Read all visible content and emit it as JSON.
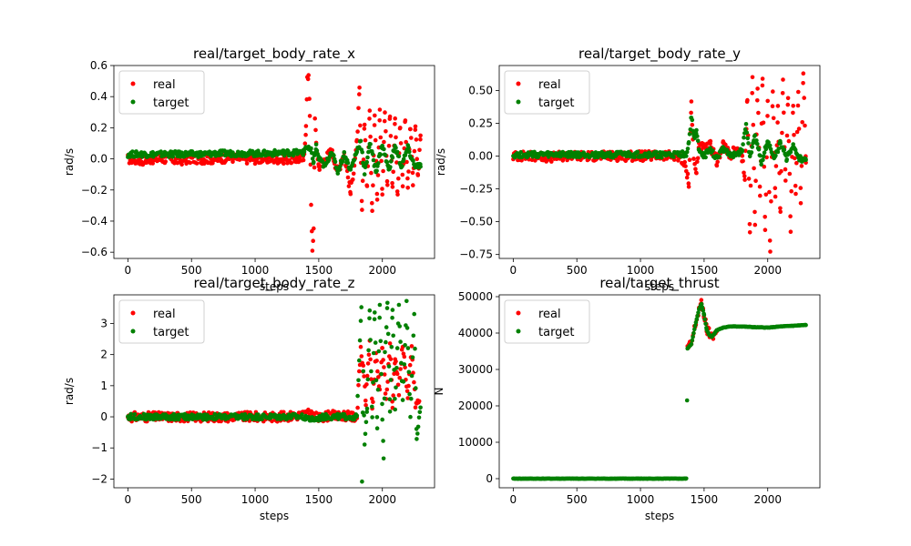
{
  "colors": {
    "real": "#ff0000",
    "target": "#008000"
  },
  "chart_data": [
    {
      "type": "scatter",
      "title": "real/target_body_rate_x",
      "xlabel": "steps",
      "ylabel": "rad/s",
      "xlim": [
        -110,
        2410
      ],
      "ylim": [
        -0.64,
        0.6
      ],
      "xticks": [
        0,
        500,
        1000,
        1500,
        2000
      ],
      "yticks": [
        -0.6,
        -0.4,
        -0.2,
        0.0,
        0.2,
        0.4,
        0.6
      ],
      "ytick_labels": [
        "−0.6",
        "−0.4",
        "−0.2",
        "0.0",
        "0.2",
        "0.4",
        "0.6"
      ],
      "legend": {
        "placement": "upper-left",
        "entries": [
          "real",
          "target"
        ]
      },
      "grid": false,
      "series": [
        {
          "name": "real",
          "color": "#ff0000",
          "x": [
            0,
            100,
            200,
            300,
            400,
            500,
            600,
            700,
            800,
            900,
            1000,
            1100,
            1200,
            1300,
            1380,
            1400,
            1410,
            1420,
            1430,
            1440,
            1450,
            1460,
            1470,
            1480,
            1500,
            1550,
            1600,
            1650,
            1700,
            1750,
            1800,
            1820,
            1840,
            1860,
            1880,
            1900,
            1920,
            1940,
            1960,
            1980,
            2000,
            2020,
            2040,
            2060,
            2080,
            2100,
            2120,
            2140,
            2160,
            2180,
            2200,
            2220,
            2240,
            2260,
            2280,
            2300
          ],
          "y": [
            0.0,
            -0.01,
            0.0,
            0.0,
            -0.01,
            0.0,
            0.0,
            0.0,
            0.01,
            0.0,
            0.0,
            0.0,
            0.0,
            0.0,
            0.0,
            0.2,
            0.5,
            0.55,
            0.3,
            -0.3,
            -0.6,
            -0.45,
            0.25,
            0.1,
            -0.05,
            0.0,
            0.05,
            -0.08,
            0.04,
            -0.22,
            0.1,
            0.43,
            -0.35,
            0.25,
            -0.2,
            0.3,
            -0.32,
            0.28,
            -0.25,
            0.33,
            -0.22,
            0.3,
            -0.18,
            0.29,
            -0.2,
            0.28,
            -0.24,
            0.23,
            -0.17,
            0.25,
            -0.2,
            0.22,
            -0.15,
            0.2,
            -0.12,
            0.15
          ]
        },
        {
          "name": "target",
          "color": "#008000",
          "x": [
            0,
            100,
            200,
            300,
            400,
            500,
            600,
            700,
            800,
            900,
            1000,
            1100,
            1200,
            1300,
            1380,
            1400,
            1420,
            1440,
            1460,
            1480,
            1500,
            1550,
            1600,
            1650,
            1700,
            1750,
            1800,
            1830,
            1860,
            1900,
            1950,
            2000,
            2050,
            2100,
            2150,
            2200,
            2250,
            2300
          ],
          "y": [
            0.03,
            0.03,
            0.03,
            0.03,
            0.03,
            0.03,
            0.03,
            0.035,
            0.035,
            0.035,
            0.035,
            0.035,
            0.04,
            0.04,
            0.04,
            0.08,
            0.06,
            0.05,
            -0.02,
            0.08,
            0.0,
            -0.05,
            0.05,
            -0.08,
            0.03,
            -0.07,
            0.05,
            0.12,
            -0.1,
            0.1,
            -0.08,
            0.09,
            -0.07,
            0.08,
            -0.05,
            0.07,
            -0.04,
            -0.05
          ]
        }
      ]
    },
    {
      "type": "scatter",
      "title": "real/target_body_rate_y",
      "xlabel": "steps",
      "ylabel": "rad/s",
      "xlim": [
        -110,
        2410
      ],
      "ylim": [
        -0.78,
        0.69
      ],
      "xticks": [
        0,
        500,
        1000,
        1500,
        2000
      ],
      "yticks": [
        -0.75,
        -0.5,
        -0.25,
        0.0,
        0.25,
        0.5
      ],
      "ytick_labels": [
        "−0.75",
        "−0.50",
        "−0.25",
        "0.00",
        "0.25",
        "0.50"
      ],
      "legend": {
        "placement": "upper-left",
        "entries": [
          "real",
          "target"
        ]
      },
      "grid": false,
      "series": [
        {
          "name": "real",
          "color": "#ff0000",
          "x": [
            0,
            100,
            200,
            300,
            400,
            500,
            600,
            700,
            800,
            900,
            1000,
            1100,
            1200,
            1300,
            1360,
            1380,
            1400,
            1420,
            1440,
            1460,
            1500,
            1550,
            1600,
            1650,
            1700,
            1750,
            1800,
            1820,
            1840,
            1860,
            1880,
            1900,
            1920,
            1940,
            1960,
            1980,
            2000,
            2020,
            2040,
            2060,
            2080,
            2100,
            2120,
            2140,
            2160,
            2180,
            2200,
            2220,
            2240,
            2260,
            2280,
            2300
          ],
          "y": [
            0.0,
            0.0,
            0.0,
            -0.01,
            0.0,
            0.0,
            0.0,
            0.0,
            0.0,
            0.0,
            0.0,
            0.0,
            0.0,
            0.0,
            -0.1,
            -0.2,
            0.4,
            -0.05,
            -0.13,
            0.1,
            0.05,
            0.08,
            -0.05,
            0.1,
            0.0,
            0.05,
            -0.03,
            -0.15,
            0.45,
            -0.6,
            0.58,
            -0.5,
            0.55,
            -0.3,
            0.6,
            -0.55,
            0.4,
            -0.72,
            0.5,
            -0.3,
            0.35,
            -0.45,
            0.55,
            -0.2,
            0.45,
            -0.55,
            0.4,
            -0.3,
            0.48,
            -0.35,
            0.64,
            -0.05
          ]
        },
        {
          "name": "target",
          "color": "#008000",
          "x": [
            0,
            100,
            200,
            300,
            400,
            500,
            600,
            700,
            800,
            900,
            1000,
            1100,
            1200,
            1300,
            1360,
            1380,
            1400,
            1420,
            1440,
            1460,
            1500,
            1550,
            1600,
            1650,
            1700,
            1750,
            1800,
            1830,
            1860,
            1900,
            1950,
            2000,
            2050,
            2100,
            2150,
            2200,
            2250,
            2300
          ],
          "y": [
            0.01,
            0.01,
            0.01,
            0.01,
            0.01,
            0.01,
            0.01,
            0.01,
            0.01,
            0.01,
            0.01,
            0.01,
            0.01,
            0.01,
            0.02,
            0.1,
            0.3,
            0.15,
            0.18,
            0.05,
            0.0,
            0.05,
            -0.02,
            0.06,
            0.02,
            0.0,
            0.05,
            0.25,
            0.0,
            0.15,
            -0.05,
            0.12,
            -0.03,
            0.1,
            -0.02,
            0.08,
            -0.02,
            -0.03
          ]
        }
      ]
    },
    {
      "type": "scatter",
      "title": "real/target_body_rate_z",
      "xlabel": "steps",
      "ylabel": "rad/s",
      "xlim": [
        -110,
        2410
      ],
      "ylim": [
        -2.28,
        3.92
      ],
      "xticks": [
        0,
        500,
        1000,
        1500,
        2000
      ],
      "yticks": [
        -2,
        -1,
        0,
        1,
        2,
        3
      ],
      "ytick_labels": [
        "−2",
        "−1",
        "0",
        "1",
        "2",
        "3"
      ],
      "legend": {
        "placement": "upper-left",
        "entries": [
          "real",
          "target"
        ]
      },
      "grid": false,
      "series": [
        {
          "name": "real",
          "color": "#ff0000",
          "x": [
            0,
            200,
            400,
            600,
            800,
            1000,
            1200,
            1350,
            1400,
            1450,
            1500,
            1550,
            1600,
            1650,
            1700,
            1750,
            1800,
            1830,
            1850,
            1870,
            1900,
            1920,
            1950,
            1980,
            2000,
            2030,
            2060,
            2080,
            2100,
            2130,
            2160,
            2200,
            2230,
            2260,
            2290
          ],
          "y": [
            0.0,
            0.0,
            0.0,
            0.0,
            0.0,
            0.0,
            0.0,
            0.05,
            0.1,
            0.05,
            -0.05,
            0.02,
            0.05,
            0.0,
            0.05,
            0.0,
            0.0,
            2.2,
            1.5,
            0.5,
            2.5,
            0.2,
            2.0,
            0.8,
            2.3,
            0.5,
            2.4,
            0.3,
            2.0,
            0.8,
            2.4,
            0.6,
            2.2,
            0.4,
            0.5
          ]
        },
        {
          "name": "target",
          "color": "#008000",
          "x": [
            0,
            200,
            400,
            600,
            800,
            1000,
            1200,
            1350,
            1400,
            1450,
            1500,
            1550,
            1600,
            1650,
            1700,
            1750,
            1800,
            1835,
            1840,
            1850,
            1860,
            1880,
            1900,
            1920,
            1940,
            1960,
            1980,
            2000,
            2010,
            2020,
            2040,
            2060,
            2080,
            2100,
            2130,
            2160,
            2190,
            2220,
            2250,
            2270,
            2300
          ],
          "y": [
            0.0,
            0.0,
            0.0,
            0.0,
            0.0,
            0.0,
            0.0,
            0.0,
            0.0,
            -0.1,
            -0.05,
            0.0,
            0.0,
            0.0,
            0.0,
            0.0,
            0.0,
            3.5,
            -2.0,
            1.5,
            -0.8,
            0.3,
            3.5,
            0.0,
            3.4,
            -0.3,
            3.6,
            0.0,
            -1.4,
            2.0,
            3.6,
            0.2,
            3.5,
            0.3,
            3.6,
            0.5,
            3.65,
            0.0,
            3.3,
            -0.7,
            0.3
          ]
        }
      ]
    },
    {
      "type": "scatter",
      "title": "real/target_thrust",
      "xlabel": "steps",
      "ylabel": "N",
      "xlim": [
        -110,
        2410
      ],
      "ylim": [
        -2500,
        50500
      ],
      "xticks": [
        0,
        500,
        1000,
        1500,
        2000
      ],
      "yticks": [
        0,
        10000,
        20000,
        30000,
        40000,
        50000
      ],
      "ytick_labels": [
        "0",
        "10000",
        "20000",
        "30000",
        "40000",
        "50000"
      ],
      "legend": {
        "placement": "upper-left",
        "entries": [
          "real",
          "target"
        ]
      },
      "grid": false,
      "series": [
        {
          "name": "real",
          "color": "#ff0000",
          "x": [
            1370,
            1400,
            1430,
            1460,
            1480,
            1500,
            1520,
            1560,
            1600
          ],
          "y": [
            35800,
            37000,
            42000,
            46500,
            48000,
            45000,
            41000,
            39000,
            40500
          ]
        },
        {
          "name": "target",
          "color": "#008000",
          "x": [
            0,
            100,
            200,
            300,
            400,
            500,
            600,
            700,
            800,
            900,
            1000,
            1100,
            1200,
            1300,
            1360,
            1370,
            1400,
            1430,
            1460,
            1480,
            1500,
            1520,
            1540,
            1560,
            1580,
            1600,
            1650,
            1700,
            1800,
            1900,
            2000,
            2100,
            2200,
            2300
          ],
          "y": [
            0,
            0,
            0,
            0,
            0,
            0,
            0,
            0,
            0,
            0,
            0,
            0,
            0,
            0,
            0,
            35800,
            37000,
            42000,
            46500,
            48000,
            45000,
            41000,
            39500,
            39000,
            39800,
            40800,
            41500,
            41800,
            41800,
            41600,
            41500,
            41800,
            42000,
            42200
          ]
        }
      ]
    }
  ]
}
